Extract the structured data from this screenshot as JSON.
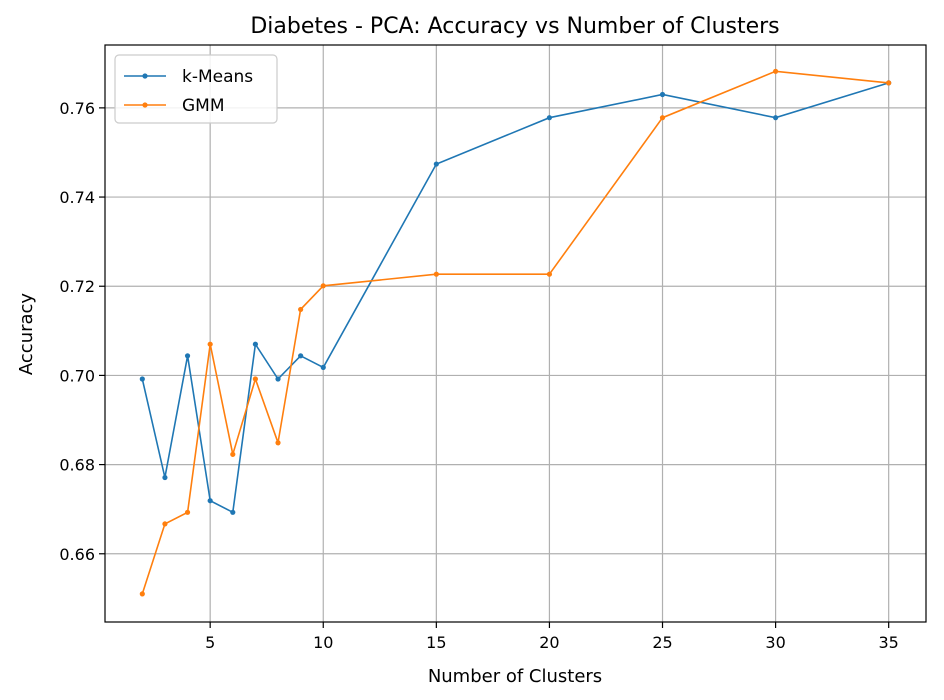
{
  "chart_data": {
    "type": "line",
    "title": "Diabetes - PCA: Accuracy vs Number of Clusters",
    "xlabel": "Number of Clusters",
    "ylabel": "Accuracy",
    "x": [
      2,
      3,
      4,
      5,
      6,
      7,
      8,
      9,
      10,
      15,
      20,
      25,
      30,
      35
    ],
    "xlim": [
      0.35,
      36.65
    ],
    "ylim": [
      0.6447,
      0.7741
    ],
    "xticks": [
      5,
      10,
      15,
      20,
      25,
      30,
      35
    ],
    "yticks": [
      0.66,
      0.68,
      0.7,
      0.72,
      0.74,
      0.76
    ],
    "ytick_labels": [
      "0.66",
      "0.68",
      "0.70",
      "0.72",
      "0.74",
      "0.76"
    ],
    "grid": true,
    "legend_position": "upper-left",
    "series": [
      {
        "name": "k-Means",
        "color": "#1f77b4",
        "marker": "dot",
        "values": [
          0.6992,
          0.6771,
          0.7044,
          0.6719,
          0.6693,
          0.707,
          0.6992,
          0.7044,
          0.7018,
          0.7474,
          0.7578,
          0.763,
          0.7578,
          0.7656
        ]
      },
      {
        "name": "GMM",
        "color": "#ff7f0e",
        "marker": "dot",
        "values": [
          0.651,
          0.6667,
          0.6693,
          0.707,
          0.6823,
          0.6992,
          0.6849,
          0.7148,
          0.7201,
          0.7227,
          0.7227,
          0.7578,
          0.7682,
          0.7656
        ]
      }
    ]
  }
}
